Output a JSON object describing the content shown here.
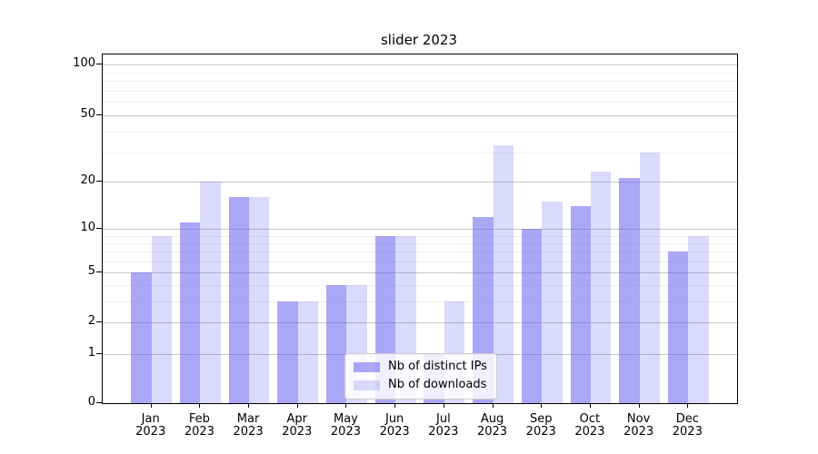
{
  "chart_data": {
    "type": "bar",
    "title": "slider 2023",
    "categories": [
      "Jan 2023",
      "Feb 2023",
      "Mar 2023",
      "Apr 2023",
      "May 2023",
      "Jun 2023",
      "Jul 2023",
      "Aug 2023",
      "Sep 2023",
      "Oct 2023",
      "Nov 2023",
      "Dec 2023"
    ],
    "series": [
      {
        "name": "Nb of distinct IPs",
        "values": [
          5,
          11,
          16,
          3,
          4,
          9,
          1,
          12,
          10,
          14,
          21,
          7
        ],
        "color": "rgba(100,95,240,0.55)"
      },
      {
        "name": "Nb of downloads",
        "values": [
          9,
          20,
          16,
          3,
          4,
          9,
          3,
          33,
          15,
          23,
          30,
          9
        ],
        "color": "rgba(100,95,240,0.23)"
      }
    ],
    "xlabel": "",
    "ylabel": "",
    "y_ticks": [
      0,
      1,
      2,
      5,
      10,
      20,
      50,
      100
    ],
    "y_minor_gridlines": [
      3,
      4,
      6,
      7,
      8,
      9,
      30,
      40,
      60,
      70,
      80,
      90
    ],
    "y_scale": "symlog",
    "ylim": [
      0,
      115
    ],
    "grid": "on",
    "legend_position": "lower center inside plot",
    "colors": {
      "bar_distinct_ips": "#aaa7f7",
      "bar_downloads": "#dbd9f9",
      "major_gridline": "#c6c6c6",
      "minor_gridline": "#efefef",
      "axis": "#000000"
    }
  }
}
